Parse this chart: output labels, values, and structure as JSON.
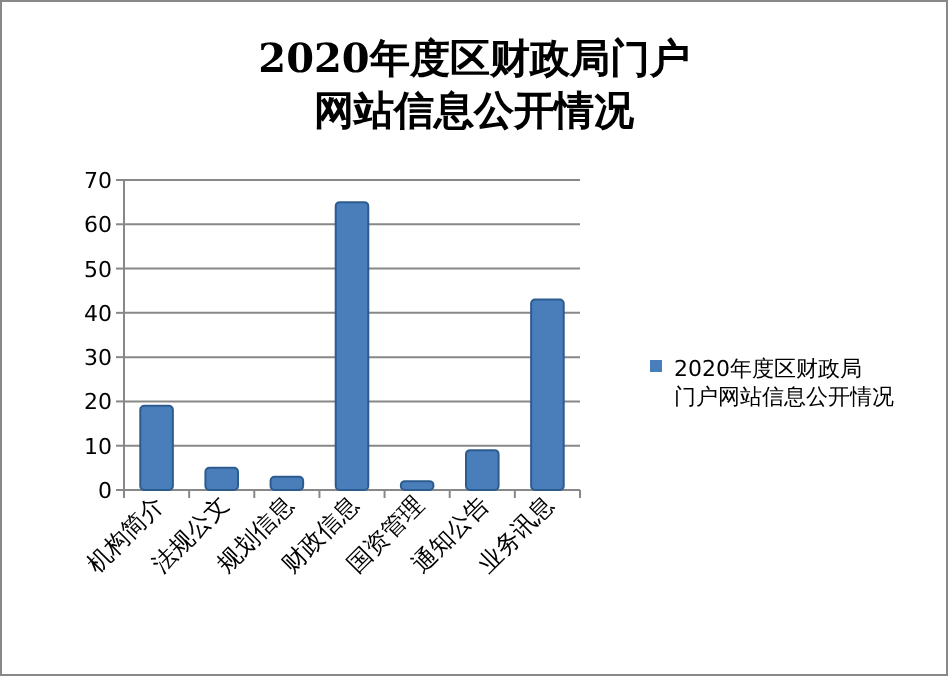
{
  "chart_data": {
    "type": "bar",
    "title": "2020年度区财政局门户网站信息公开情况",
    "categories": [
      "机构简介",
      "法规公文",
      "规划信息",
      "财政信息",
      "国资管理",
      "通知公告",
      "业务讯息"
    ],
    "series": [
      {
        "name": "2020年度区财政局门户网站信息公开情况",
        "color": "#4a7ebb",
        "values": [
          19,
          5,
          3,
          65,
          2,
          9,
          43
        ]
      }
    ],
    "ylim": [
      0,
      70
    ],
    "yticks": [
      0,
      10,
      20,
      30,
      40,
      50,
      60,
      70
    ],
    "grid": "y",
    "legend": "right"
  }
}
